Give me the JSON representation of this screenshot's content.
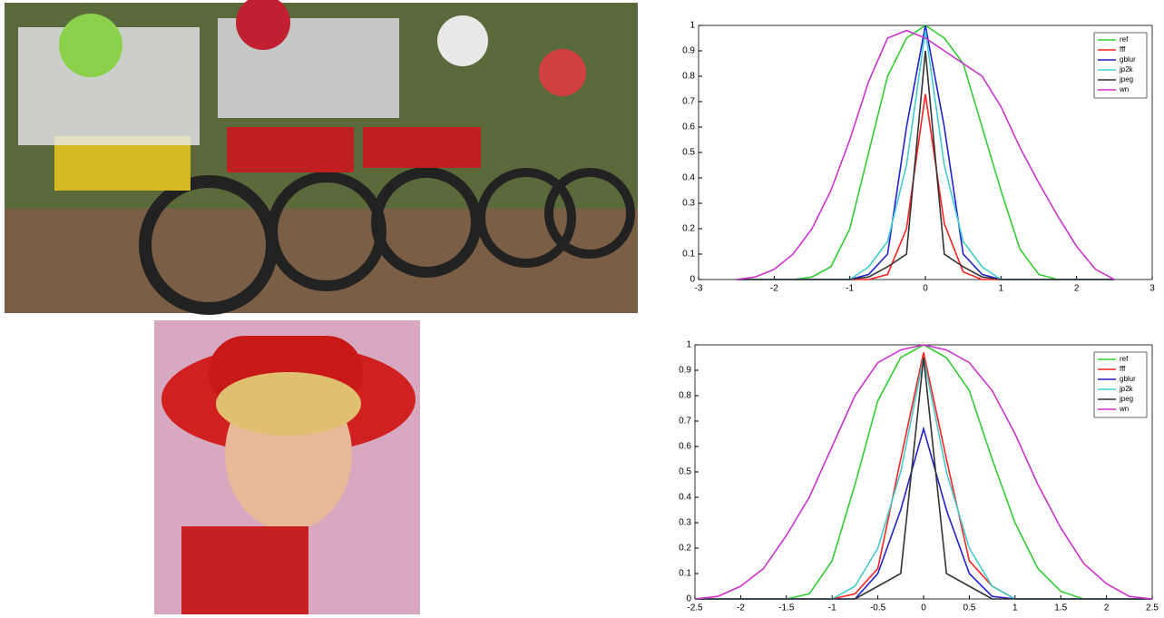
{
  "chart_data": [
    {
      "type": "line",
      "legend": "upper right",
      "xlim": [
        -3,
        3
      ],
      "xticks": [
        -3,
        -2,
        -1,
        0,
        1,
        2,
        3
      ],
      "ylim": [
        0,
        1
      ],
      "yticks": [
        0,
        0.1,
        0.2,
        0.3,
        0.4,
        0.5,
        0.6,
        0.7,
        0.8,
        0.9,
        1
      ],
      "x": [
        -2.5,
        -2.25,
        -2,
        -1.75,
        -1.5,
        -1.25,
        -1,
        -0.75,
        -0.5,
        -0.25,
        0,
        0.25,
        0.5,
        0.75,
        1,
        1.25,
        1.5,
        1.75,
        2,
        2.25,
        2.5
      ],
      "series": [
        {
          "name": "ref",
          "color": "#33cc33",
          "values": [
            0,
            0,
            0,
            0,
            0.01,
            0.05,
            0.2,
            0.5,
            0.8,
            0.95,
            1,
            0.95,
            0.85,
            0.6,
            0.35,
            0.12,
            0.02,
            0,
            0,
            0,
            0
          ]
        },
        {
          "name": "fff",
          "color": "#ff2222",
          "values": [
            0,
            0,
            0,
            0,
            0,
            0,
            0,
            0,
            0.02,
            0.2,
            0.73,
            0.22,
            0.03,
            0,
            0,
            0,
            0,
            0,
            0,
            0,
            0
          ]
        },
        {
          "name": "gblur",
          "color": "#2222cc",
          "values": [
            0,
            0,
            0,
            0,
            0,
            0,
            0,
            0.02,
            0.1,
            0.6,
            1,
            0.6,
            0.1,
            0.02,
            0,
            0,
            0,
            0,
            0,
            0,
            0
          ]
        },
        {
          "name": "jp2k",
          "color": "#44cccc",
          "values": [
            0,
            0,
            0,
            0,
            0,
            0,
            0,
            0.05,
            0.15,
            0.45,
            0.98,
            0.45,
            0.15,
            0.05,
            0,
            0,
            0,
            0,
            0,
            0,
            0
          ]
        },
        {
          "name": "jpeg",
          "color": "#333333",
          "values": [
            0,
            0,
            0,
            0,
            0,
            0,
            0,
            0.01,
            0.05,
            0.1,
            0.9,
            0.1,
            0.05,
            0.01,
            0,
            0,
            0,
            0,
            0,
            0,
            0
          ]
        },
        {
          "name": "wn",
          "color": "#cc33cc",
          "values": [
            0,
            0.01,
            0.04,
            0.1,
            0.2,
            0.35,
            0.55,
            0.78,
            0.95,
            0.98,
            0.95,
            0.9,
            0.85,
            0.8,
            0.68,
            0.52,
            0.38,
            0.25,
            0.13,
            0.04,
            0
          ]
        }
      ]
    },
    {
      "type": "line",
      "legend": "upper right",
      "xlim": [
        -2.5,
        2.5
      ],
      "xticks": [
        -2.5,
        -2,
        -1.5,
        -1,
        -0.5,
        0,
        0.5,
        1,
        1.5,
        2,
        2.5
      ],
      "ylim": [
        0,
        1
      ],
      "yticks": [
        0,
        0.1,
        0.2,
        0.3,
        0.4,
        0.5,
        0.6,
        0.7,
        0.8,
        0.9,
        1
      ],
      "x": [
        -2.5,
        -2.25,
        -2,
        -1.75,
        -1.5,
        -1.25,
        -1,
        -0.75,
        -0.5,
        -0.25,
        0,
        0.25,
        0.5,
        0.75,
        1,
        1.25,
        1.5,
        1.75,
        2,
        2.25,
        2.5
      ],
      "series": [
        {
          "name": "ref",
          "color": "#33cc33",
          "values": [
            0,
            0,
            0,
            0,
            0,
            0.02,
            0.15,
            0.45,
            0.78,
            0.95,
            1,
            0.95,
            0.82,
            0.55,
            0.3,
            0.12,
            0.03,
            0,
            0,
            0,
            0
          ]
        },
        {
          "name": "fff",
          "color": "#ff2222",
          "values": [
            0,
            0,
            0,
            0,
            0,
            0,
            0,
            0.02,
            0.12,
            0.55,
            0.97,
            0.55,
            0.15,
            0.05,
            0,
            0,
            0,
            0,
            0,
            0,
            0
          ]
        },
        {
          "name": "gblur",
          "color": "#2222cc",
          "values": [
            0,
            0,
            0,
            0,
            0,
            0,
            0,
            0,
            0.1,
            0.35,
            0.67,
            0.35,
            0.1,
            0.01,
            0,
            0,
            0,
            0,
            0,
            0,
            0
          ]
        },
        {
          "name": "jp2k",
          "color": "#44cccc",
          "values": [
            0,
            0,
            0,
            0,
            0,
            0,
            0,
            0.05,
            0.2,
            0.5,
            0.95,
            0.5,
            0.2,
            0.05,
            0,
            0,
            0,
            0,
            0,
            0,
            0
          ]
        },
        {
          "name": "jpeg",
          "color": "#333333",
          "values": [
            0,
            0,
            0,
            0,
            0,
            0,
            0,
            0,
            0.05,
            0.1,
            0.95,
            0.1,
            0.05,
            0,
            0,
            0,
            0,
            0,
            0,
            0,
            0
          ]
        },
        {
          "name": "wn",
          "color": "#cc33cc",
          "values": [
            0,
            0.01,
            0.05,
            0.12,
            0.25,
            0.4,
            0.6,
            0.8,
            0.93,
            0.98,
            1,
            0.98,
            0.93,
            0.82,
            0.65,
            0.45,
            0.28,
            0.14,
            0.06,
            0.01,
            0
          ]
        }
      ]
    }
  ]
}
